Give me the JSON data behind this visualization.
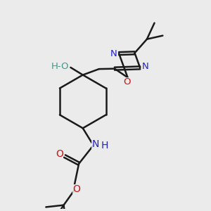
{
  "bg_color": "#ebebeb",
  "black": "#1a1a1a",
  "blue": "#2222cc",
  "red": "#cc1111",
  "teal": "#3d9b8a",
  "bond_lw": 1.8,
  "fig_w": 3.0,
  "fig_h": 3.0,
  "dpi": 100,
  "xlim": [
    0,
    10
  ],
  "ylim": [
    0,
    10.5
  ]
}
